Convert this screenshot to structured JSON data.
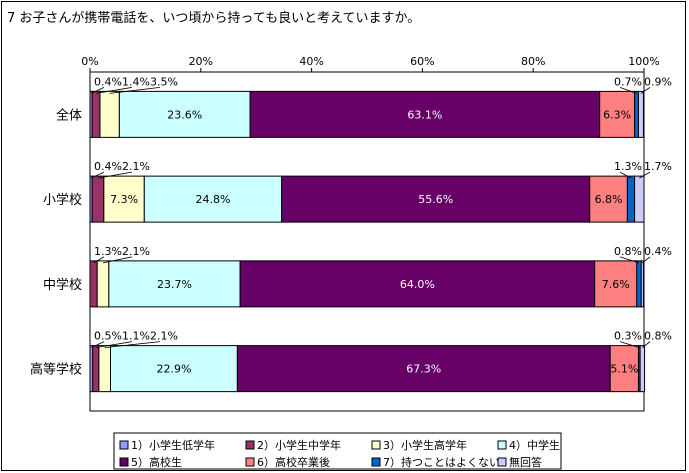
{
  "chart_data": {
    "type": "bar",
    "orientation": "horizontal",
    "stacked": "percent",
    "title": "7 お子さんが携帯電話を、いつ頃から持っても良いと考えていますか。",
    "xlim": [
      0,
      100
    ],
    "x_ticks": [
      "0%",
      "20%",
      "40%",
      "60%",
      "80%",
      "100%"
    ],
    "categories": [
      "全体",
      "小学校",
      "中学校",
      "高等学校"
    ],
    "legend_position": "bottom",
    "series": [
      {
        "name": "1）小学生低学年",
        "color": "#9999ff",
        "values": [
          0.4,
          0.4,
          0.0,
          0.5
        ],
        "labels": [
          "0.4%",
          "0.4%",
          "",
          "0.5%"
        ]
      },
      {
        "name": "2）小学生中学年",
        "color": "#993366",
        "values": [
          1.4,
          2.1,
          1.3,
          1.1
        ],
        "labels": [
          "1.4%",
          "2.1%",
          "1.3%",
          "1.1%"
        ]
      },
      {
        "name": "3）小学生高学年",
        "color": "#ffffcc",
        "values": [
          3.5,
          7.3,
          2.1,
          2.1
        ],
        "labels": [
          "3.5%",
          "7.3%",
          "2.1%",
          "2.1%"
        ]
      },
      {
        "name": "4）中学生",
        "color": "#ccffff",
        "values": [
          23.6,
          24.8,
          23.7,
          22.9
        ],
        "labels": [
          "23.6%",
          "24.8%",
          "23.7%",
          "22.9%"
        ]
      },
      {
        "name": "5）高校生",
        "color": "#660066",
        "values": [
          63.1,
          55.6,
          64.0,
          67.3
        ],
        "labels": [
          "63.1%",
          "55.6%",
          "64.0%",
          "67.3%"
        ]
      },
      {
        "name": "6）高校卒業後",
        "color": "#ff8080",
        "values": [
          6.3,
          6.8,
          7.6,
          5.1
        ],
        "labels": [
          "6.3%",
          "6.8%",
          "7.6%",
          "5.1%"
        ]
      },
      {
        "name": "7）持つことはよくない",
        "color": "#0066cc",
        "values": [
          0.7,
          1.3,
          0.8,
          0.3
        ],
        "labels": [
          "0.7%",
          "1.3%",
          "0.8%",
          "0.3%"
        ]
      },
      {
        "name": "無回答",
        "color": "#ccccff",
        "values": [
          0.9,
          1.7,
          0.4,
          0.8
        ],
        "labels": [
          "0.9%",
          "1.7%",
          "0.4%",
          "0.8%"
        ]
      }
    ]
  }
}
